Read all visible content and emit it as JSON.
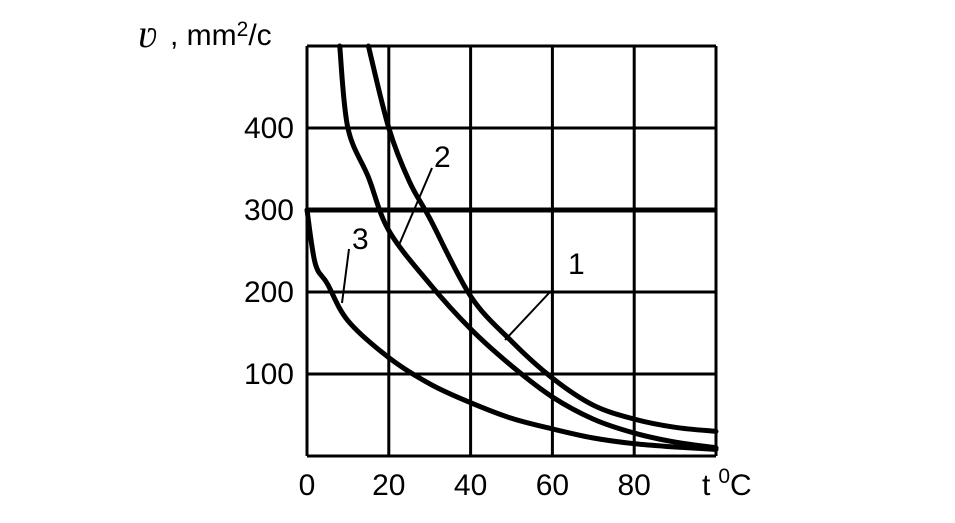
{
  "chart_data": {
    "type": "line",
    "title": "",
    "ylabel_symbol": "ʋ",
    "ylabel_unit_prefix": ", mm",
    "ylabel_unit_exp": "2",
    "ylabel_unit_suffix": "/c",
    "xlabel": "t",
    "xlabel_unit_exp": "0",
    "xlabel_unit": "C",
    "xlim": [
      0,
      100
    ],
    "ylim": [
      0,
      500
    ],
    "x_ticks": [
      0,
      20,
      40,
      60,
      80
    ],
    "x_tick_labels": [
      "0",
      "20",
      "40",
      "60",
      "80"
    ],
    "y_ticks": [
      100,
      200,
      300,
      400
    ],
    "y_tick_labels": [
      "100",
      "200",
      "300",
      "400"
    ],
    "grid": true,
    "reference_line": {
      "y": 300
    },
    "series": [
      {
        "name": "1",
        "points": [
          [
            15,
            500
          ],
          [
            20,
            400
          ],
          [
            25,
            335
          ],
          [
            30,
            290
          ],
          [
            40,
            195
          ],
          [
            50,
            140
          ],
          [
            60,
            95
          ],
          [
            70,
            62
          ],
          [
            80,
            45
          ],
          [
            90,
            35
          ],
          [
            100,
            30
          ]
        ]
      },
      {
        "name": "2",
        "points": [
          [
            8,
            500
          ],
          [
            10,
            400
          ],
          [
            15,
            340
          ],
          [
            20,
            275
          ],
          [
            30,
            210
          ],
          [
            40,
            155
          ],
          [
            50,
            110
          ],
          [
            60,
            72
          ],
          [
            70,
            45
          ],
          [
            80,
            28
          ],
          [
            90,
            17
          ],
          [
            100,
            10
          ]
        ]
      },
      {
        "name": "3",
        "points": [
          [
            0,
            300
          ],
          [
            2,
            235
          ],
          [
            5,
            210
          ],
          [
            10,
            165
          ],
          [
            20,
            120
          ],
          [
            30,
            88
          ],
          [
            40,
            65
          ],
          [
            50,
            46
          ],
          [
            60,
            33
          ],
          [
            70,
            22
          ],
          [
            80,
            15
          ],
          [
            90,
            11
          ],
          [
            100,
            8
          ]
        ]
      }
    ]
  }
}
